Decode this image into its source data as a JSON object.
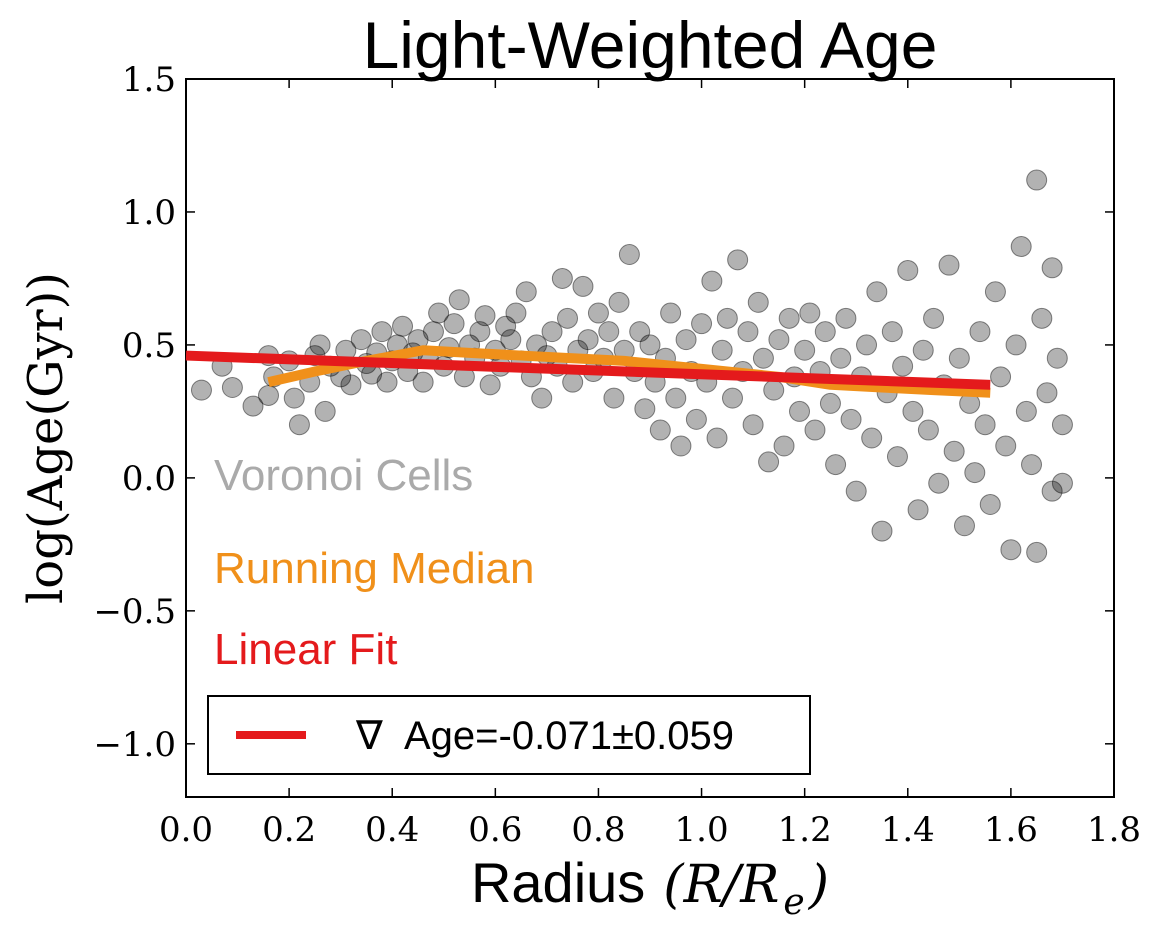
{
  "chart_data": {
    "type": "scatter",
    "title": "Light-Weighted Age",
    "xlabel": "Radius",
    "xlabel_math": "(R/R",
    "xlabel_math_sub": "e",
    "xlabel_math_close": ")",
    "ylabel": "log(Age(Gyr))",
    "xlim": [
      0.0,
      1.8
    ],
    "ylim": [
      -1.2,
      1.5
    ],
    "x_ticks": [
      "0.0",
      "0.2",
      "0.4",
      "0.6",
      "0.8",
      "1.0",
      "1.2",
      "1.4",
      "1.6",
      "1.8"
    ],
    "y_ticks": [
      "1.5",
      "1.0",
      "0.5",
      "0.0",
      "−0.5",
      "−1.0"
    ],
    "grid": false,
    "annotations": [
      {
        "text": "Voronoi Cells",
        "color": "#aaaaaa"
      },
      {
        "text": "Running Median",
        "color": "#f0901a"
      },
      {
        "text": "Linear Fit",
        "color": "#e41a1c"
      }
    ],
    "legend": {
      "placement": "lower-left",
      "symbol": "∇",
      "label": "Age=-0.071±0.059",
      "line_color": "#e41a1c"
    },
    "series": [
      {
        "name": "Voronoi Cells",
        "kind": "scatter",
        "color": "#000000",
        "alpha": 0.3,
        "points": [
          [
            0.03,
            0.33
          ],
          [
            0.07,
            0.42
          ],
          [
            0.09,
            0.34
          ],
          [
            0.13,
            0.27
          ],
          [
            0.16,
            0.46
          ],
          [
            0.16,
            0.31
          ],
          [
            0.17,
            0.38
          ],
          [
            0.2,
            0.44
          ],
          [
            0.21,
            0.3
          ],
          [
            0.22,
            0.2
          ],
          [
            0.24,
            0.36
          ],
          [
            0.25,
            0.46
          ],
          [
            0.26,
            0.5
          ],
          [
            0.27,
            0.25
          ],
          [
            0.28,
            0.42
          ],
          [
            0.3,
            0.38
          ],
          [
            0.31,
            0.48
          ],
          [
            0.32,
            0.35
          ],
          [
            0.34,
            0.52
          ],
          [
            0.35,
            0.43
          ],
          [
            0.36,
            0.39
          ],
          [
            0.37,
            0.47
          ],
          [
            0.38,
            0.55
          ],
          [
            0.39,
            0.36
          ],
          [
            0.4,
            0.44
          ],
          [
            0.41,
            0.5
          ],
          [
            0.42,
            0.57
          ],
          [
            0.43,
            0.4
          ],
          [
            0.44,
            0.47
          ],
          [
            0.45,
            0.52
          ],
          [
            0.46,
            0.36
          ],
          [
            0.47,
            0.45
          ],
          [
            0.48,
            0.55
          ],
          [
            0.49,
            0.62
          ],
          [
            0.5,
            0.42
          ],
          [
            0.51,
            0.49
          ],
          [
            0.52,
            0.58
          ],
          [
            0.53,
            0.67
          ],
          [
            0.54,
            0.38
          ],
          [
            0.55,
            0.5
          ],
          [
            0.56,
            0.45
          ],
          [
            0.57,
            0.55
          ],
          [
            0.58,
            0.61
          ],
          [
            0.59,
            0.35
          ],
          [
            0.6,
            0.48
          ],
          [
            0.61,
            0.42
          ],
          [
            0.62,
            0.57
          ],
          [
            0.63,
            0.52
          ],
          [
            0.64,
            0.62
          ],
          [
            0.65,
            0.44
          ],
          [
            0.66,
            0.7
          ],
          [
            0.67,
            0.38
          ],
          [
            0.68,
            0.5
          ],
          [
            0.69,
            0.3
          ],
          [
            0.7,
            0.46
          ],
          [
            0.71,
            0.55
          ],
          [
            0.72,
            0.42
          ],
          [
            0.73,
            0.75
          ],
          [
            0.74,
            0.6
          ],
          [
            0.75,
            0.36
          ],
          [
            0.76,
            0.48
          ],
          [
            0.77,
            0.72
          ],
          [
            0.78,
            0.52
          ],
          [
            0.79,
            0.4
          ],
          [
            0.8,
            0.62
          ],
          [
            0.81,
            0.45
          ],
          [
            0.82,
            0.55
          ],
          [
            0.83,
            0.3
          ],
          [
            0.84,
            0.66
          ],
          [
            0.85,
            0.48
          ],
          [
            0.86,
            0.84
          ],
          [
            0.87,
            0.4
          ],
          [
            0.88,
            0.55
          ],
          [
            0.89,
            0.26
          ],
          [
            0.9,
            0.5
          ],
          [
            0.91,
            0.36
          ],
          [
            0.92,
            0.18
          ],
          [
            0.93,
            0.45
          ],
          [
            0.94,
            0.62
          ],
          [
            0.95,
            0.3
          ],
          [
            0.96,
            0.12
          ],
          [
            0.97,
            0.52
          ],
          [
            0.98,
            0.4
          ],
          [
            0.99,
            0.22
          ],
          [
            1.0,
            0.58
          ],
          [
            1.01,
            0.36
          ],
          [
            1.02,
            0.74
          ],
          [
            1.03,
            0.15
          ],
          [
            1.04,
            0.48
          ],
          [
            1.05,
            0.6
          ],
          [
            1.06,
            0.3
          ],
          [
            1.07,
            0.82
          ],
          [
            1.08,
            0.4
          ],
          [
            1.09,
            0.55
          ],
          [
            1.1,
            0.2
          ],
          [
            1.11,
            0.66
          ],
          [
            1.12,
            0.45
          ],
          [
            1.13,
            0.06
          ],
          [
            1.14,
            0.33
          ],
          [
            1.15,
            0.52
          ],
          [
            1.16,
            0.12
          ],
          [
            1.17,
            0.6
          ],
          [
            1.18,
            0.38
          ],
          [
            1.19,
            0.25
          ],
          [
            1.2,
            0.48
          ],
          [
            1.21,
            0.62
          ],
          [
            1.22,
            0.18
          ],
          [
            1.23,
            0.4
          ],
          [
            1.24,
            0.55
          ],
          [
            1.25,
            0.28
          ],
          [
            1.26,
            0.05
          ],
          [
            1.27,
            0.45
          ],
          [
            1.28,
            0.6
          ],
          [
            1.29,
            0.22
          ],
          [
            1.3,
            -0.05
          ],
          [
            1.31,
            0.38
          ],
          [
            1.32,
            0.5
          ],
          [
            1.33,
            0.15
          ],
          [
            1.34,
            0.7
          ],
          [
            1.35,
            -0.2
          ],
          [
            1.36,
            0.32
          ],
          [
            1.37,
            0.55
          ],
          [
            1.38,
            0.08
          ],
          [
            1.39,
            0.42
          ],
          [
            1.4,
            0.78
          ],
          [
            1.41,
            0.25
          ],
          [
            1.42,
            -0.12
          ],
          [
            1.43,
            0.48
          ],
          [
            1.44,
            0.18
          ],
          [
            1.45,
            0.6
          ],
          [
            1.46,
            -0.02
          ],
          [
            1.47,
            0.35
          ],
          [
            1.48,
            0.8
          ],
          [
            1.49,
            0.1
          ],
          [
            1.5,
            0.45
          ],
          [
            1.51,
            -0.18
          ],
          [
            1.52,
            0.28
          ],
          [
            1.53,
            0.02
          ],
          [
            1.54,
            0.55
          ],
          [
            1.55,
            0.2
          ],
          [
            1.56,
            -0.1
          ],
          [
            1.57,
            0.7
          ],
          [
            1.58,
            0.38
          ],
          [
            1.59,
            0.12
          ],
          [
            1.6,
            -0.27
          ],
          [
            1.61,
            0.5
          ],
          [
            1.62,
            0.87
          ],
          [
            1.63,
            0.25
          ],
          [
            1.64,
            0.05
          ],
          [
            1.65,
            1.12
          ],
          [
            1.65,
            -0.28
          ],
          [
            1.66,
            0.6
          ],
          [
            1.67,
            0.32
          ],
          [
            1.68,
            -0.05
          ],
          [
            1.68,
            0.79
          ],
          [
            1.69,
            0.45
          ],
          [
            1.7,
            0.2
          ],
          [
            1.7,
            -0.02
          ]
        ]
      },
      {
        "name": "Running Median",
        "kind": "line",
        "color": "#f0901a",
        "x": [
          0.16,
          0.25,
          0.35,
          0.46,
          0.55,
          0.65,
          0.75,
          0.85,
          0.95,
          1.05,
          1.15,
          1.25,
          1.35,
          1.45,
          1.56
        ],
        "y": [
          0.36,
          0.4,
          0.44,
          0.48,
          0.47,
          0.46,
          0.45,
          0.44,
          0.42,
          0.4,
          0.38,
          0.35,
          0.34,
          0.33,
          0.32
        ]
      },
      {
        "name": "Linear Fit",
        "kind": "line",
        "color": "#e41a1c",
        "x": [
          0.0,
          1.56
        ],
        "y": [
          0.46,
          0.35
        ]
      }
    ]
  }
}
